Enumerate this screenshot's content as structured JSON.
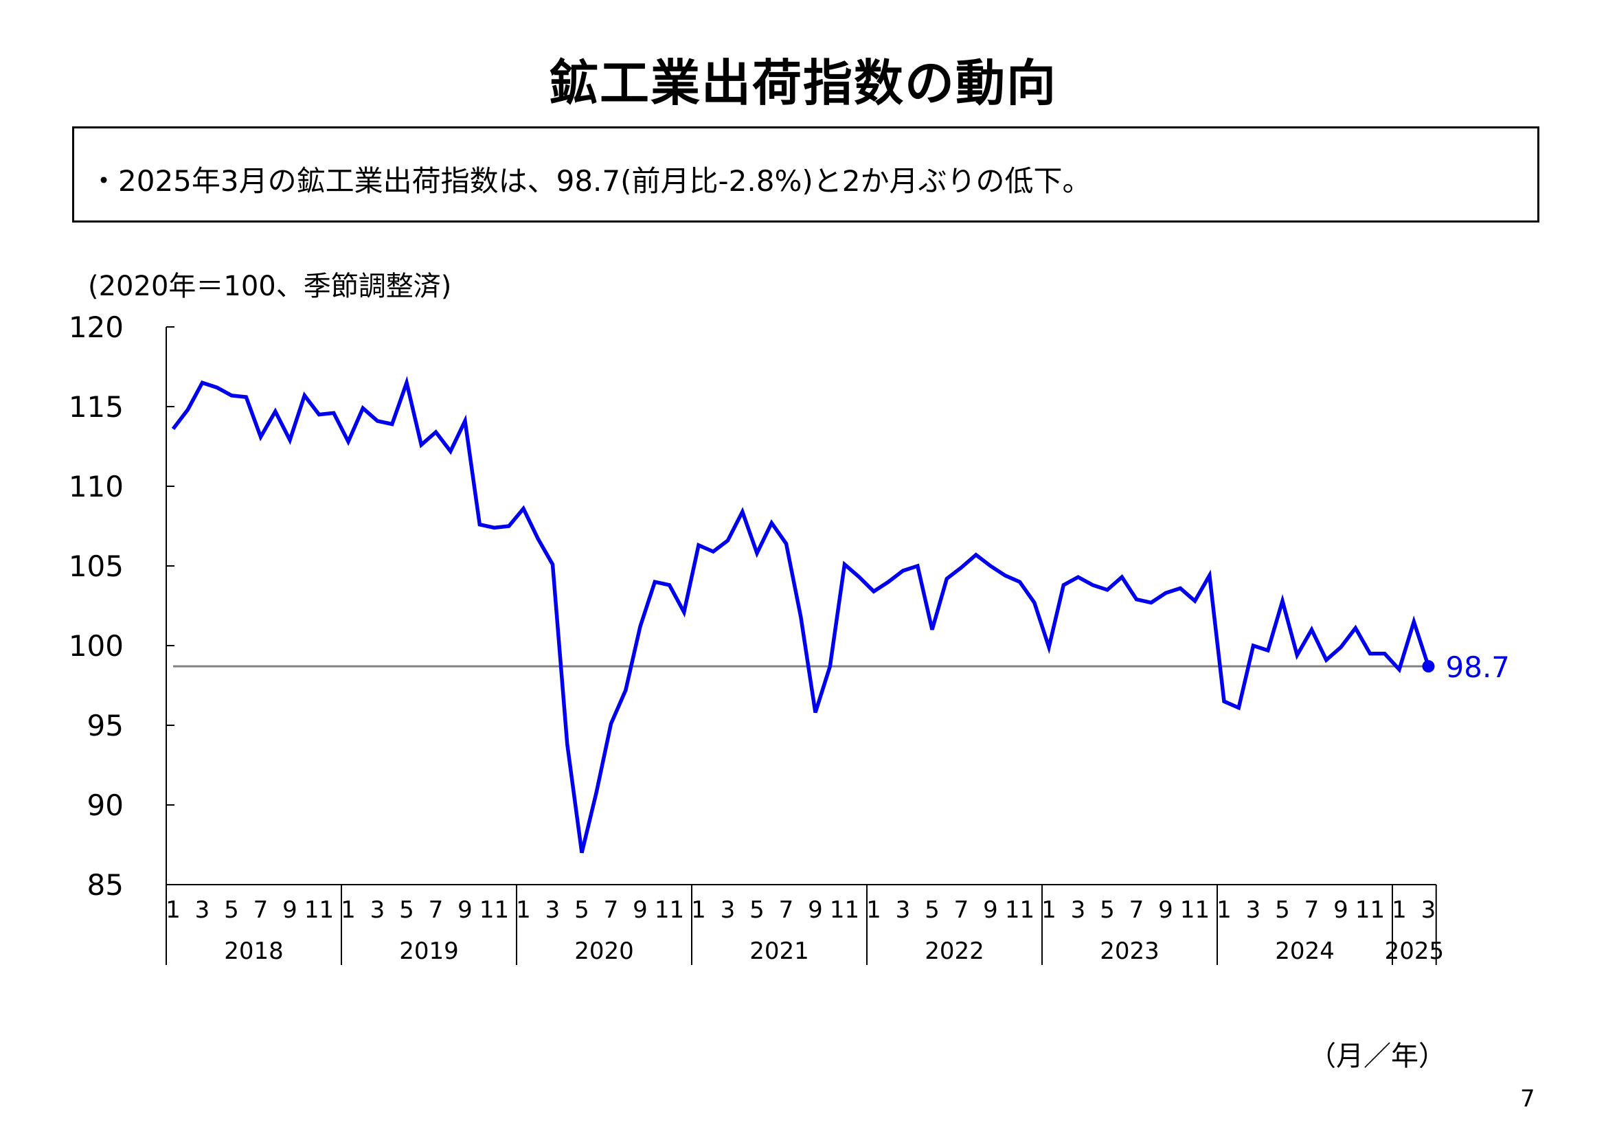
{
  "title": "鉱工業出荷指数の動向",
  "summary": "・2025年3月の鉱工業出荷指数は、98.7(前月比-2.8%)と2か月ぶりの低下。",
  "unit_label": "(2020年＝100、季節調整済)",
  "axis_unit": "（月／年）",
  "page_number": "7",
  "colors": {
    "line": "#0000ee",
    "reference": "#808080",
    "axis": "#000000"
  },
  "chart_data": {
    "type": "line",
    "title": "",
    "ylim": [
      85,
      120
    ],
    "yticks": [
      85,
      90,
      95,
      100,
      105,
      110,
      115,
      120
    ],
    "month_tick_labels": [
      "1",
      "3",
      "5",
      "7",
      "9",
      "11"
    ],
    "years": [
      {
        "label": "2018",
        "months": 12
      },
      {
        "label": "2019",
        "months": 12
      },
      {
        "label": "2020",
        "months": 12
      },
      {
        "label": "2021",
        "months": 12
      },
      {
        "label": "2022",
        "months": 12
      },
      {
        "label": "2023",
        "months": 12
      },
      {
        "label": "2024",
        "months": 12
      },
      {
        "label": "2025",
        "months": 3
      }
    ],
    "series": [
      {
        "values": [
          113.6,
          114.8,
          116.5,
          116.2,
          115.7,
          115.6,
          113.1,
          114.7,
          112.9,
          115.7,
          114.5,
          114.6,
          112.8,
          114.9,
          114.1,
          113.9,
          116.5,
          112.6,
          113.4,
          112.2,
          114.1,
          107.6,
          107.4,
          107.5,
          108.6,
          106.7,
          105.1,
          93.8,
          87.0,
          90.8,
          95.1,
          97.2,
          101.2,
          104.0,
          103.8,
          102.1,
          106.3,
          105.9,
          106.6,
          108.4,
          105.8,
          107.7,
          106.4,
          101.8,
          95.8,
          98.7,
          105.1,
          104.3,
          103.4,
          104.0,
          104.7,
          105.0,
          101.0,
          104.2,
          104.9,
          105.7,
          105.0,
          104.4,
          104.0,
          102.7,
          99.9,
          103.8,
          104.3,
          103.8,
          103.5,
          104.3,
          102.9,
          102.7,
          103.3,
          103.6,
          102.8,
          104.4,
          96.5,
          96.1,
          100.0,
          99.7,
          102.8,
          99.4,
          101.0,
          99.1,
          99.9,
          101.1,
          99.5,
          99.5,
          98.5,
          101.5,
          98.7
        ]
      }
    ],
    "latest_value_label": "98.7",
    "reference_value": 98.7
  }
}
